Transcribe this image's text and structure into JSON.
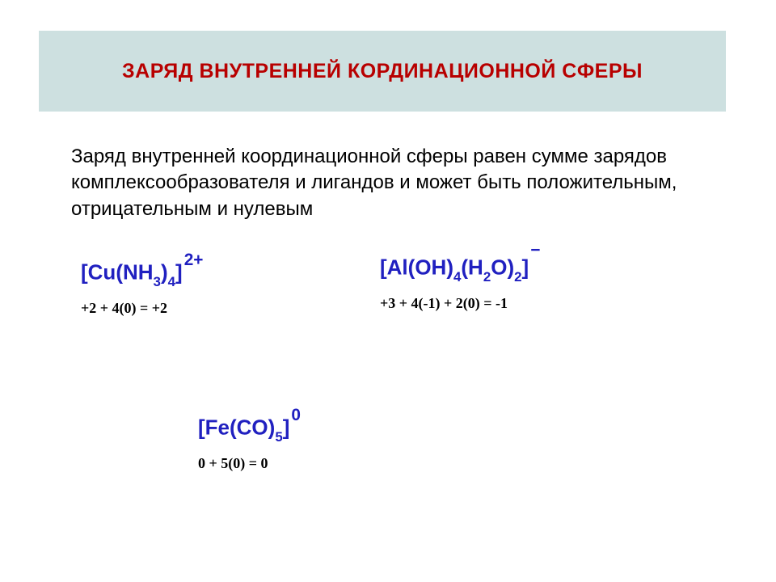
{
  "title": "ЗАРЯД ВНУТРЕННЕЙ КОРДИНАЦИОННОЙ СФЕРЫ",
  "body": "Заряд внутренней координационной сферы равен сумме зарядов комплексообразователя и лигандов и может быть положительным, отрицательным и нулевым",
  "f1": {
    "open": "[Cu(NH",
    "sub1": "3",
    "mid": ")",
    "sub2": "4",
    "close": "]",
    "charge": "2+",
    "calc": "+2 + 4(0) = +2"
  },
  "f2": {
    "open": "[Al(OH)",
    "sub1": "4",
    "mid1": "(H",
    "sub2": "2",
    "mid2": "O)",
    "sub3": "2",
    "close": "]",
    "charge": "−",
    "calc": "+3 + 4(-1) + 2(0) = -1"
  },
  "f3": {
    "open": "[Fe(CO)",
    "sub1": "5",
    "close": "]",
    "charge": "0",
    "calc": "0 + 5(0) = 0"
  },
  "colors": {
    "title_bg": "#cde0e0",
    "title_fg": "#b80000",
    "formula": "#2020c0",
    "text": "#000000"
  }
}
